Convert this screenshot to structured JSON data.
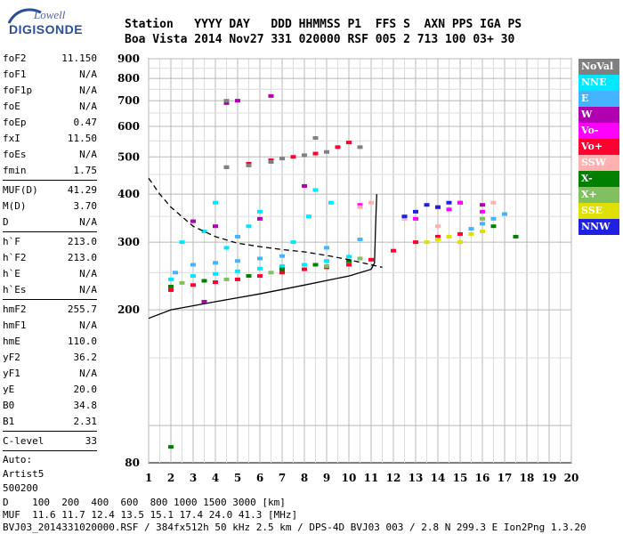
{
  "logo": {
    "top": "Lowell",
    "main": "DIGISONDE"
  },
  "header": {
    "line1": "Station   YYYY DAY   DDD HHMMSS P1  FFS S  AXN PPS IGA PS",
    "line2": "Boa Vista 2014 Nov27 331 020000 RSF 005 2 713 100 03+ 30"
  },
  "params": {
    "group1": [
      {
        "label": "foF2",
        "value": "11.150"
      },
      {
        "label": "foF1",
        "value": "N/A"
      },
      {
        "label": "foF1p",
        "value": "N/A"
      },
      {
        "label": "foE",
        "value": "N/A"
      },
      {
        "label": "foEp",
        "value": "0.47"
      },
      {
        "label": "fxI",
        "value": "11.50"
      },
      {
        "label": "foEs",
        "value": "N/A"
      },
      {
        "label": "fmin",
        "value": "1.75"
      }
    ],
    "group2": [
      {
        "label": "MUF(D)",
        "value": "41.29"
      },
      {
        "label": "M(D)",
        "value": "3.70"
      },
      {
        "label": "D",
        "value": "N/A"
      }
    ],
    "group3": [
      {
        "label": "h`F",
        "value": "213.0"
      },
      {
        "label": "h`F2",
        "value": "213.0"
      },
      {
        "label": "h`E",
        "value": "N/A"
      },
      {
        "label": "h`Es",
        "value": "N/A"
      }
    ],
    "group4": [
      {
        "label": "hmF2",
        "value": "255.7"
      },
      {
        "label": "hmF1",
        "value": "N/A"
      },
      {
        "label": "hmE",
        "value": "110.0"
      },
      {
        "label": "yF2",
        "value": "36.2"
      },
      {
        "label": "yF1",
        "value": "N/A"
      },
      {
        "label": "yE",
        "value": "20.0"
      },
      {
        "label": "B0",
        "value": "34.8"
      },
      {
        "label": "B1",
        "value": "2.31"
      }
    ],
    "group5": [
      {
        "label": "C-level",
        "value": "33"
      }
    ],
    "auto_label": "Auto:",
    "auto_value": "Artist5",
    "auto_code": "500200"
  },
  "legend": [
    {
      "label": "NoVal",
      "color": "#808080"
    },
    {
      "label": "NNE",
      "color": "#00e8ff"
    },
    {
      "label": "E",
      "color": "#44b4ff"
    },
    {
      "label": "W",
      "color": "#b000b0"
    },
    {
      "label": "Vo-",
      "color": "#ff00ff"
    },
    {
      "label": "Vo+",
      "color": "#ff0030"
    },
    {
      "label": "SSW",
      "color": "#ffb0b0"
    },
    {
      "label": "X-",
      "color": "#008000"
    },
    {
      "label": "X+",
      "color": "#80c060"
    },
    {
      "label": "SSE",
      "color": "#e0e000"
    },
    {
      "label": "NNW",
      "color": "#2020e0"
    }
  ],
  "footer": {
    "line1": "D    100  200  400  600  800 1000 1500 3000 [km]",
    "line2": "MUF  11.6 11.7 12.4 13.5 15.1 17.4 24.0 41.3 [MHz]",
    "line3": "BVJ03_2014331020000.RSF / 384fx512h 50 kHz 2.5 km / DPS-4D BVJ03 003 / 2.8 N 299.3 E Ion2Png 1.3.20"
  },
  "chart_data": {
    "type": "scatter",
    "title": "",
    "xlabel": "",
    "ylabel": "",
    "xlim": [
      1,
      20
    ],
    "ylim": [
      80,
      900
    ],
    "y_scale": "log",
    "x_ticks": [
      "1",
      "2",
      "3",
      "4",
      "5",
      "6",
      "7",
      "8",
      "9",
      "10",
      "11",
      "12",
      "13",
      "14",
      "15",
      "16",
      "17",
      "18",
      "19",
      "20"
    ],
    "y_ticks": [
      "80",
      "200",
      "300",
      "400",
      "500",
      "600",
      "700",
      "800",
      "900"
    ],
    "grid": true,
    "series": [
      {
        "name": "NNE",
        "points": [
          [
            2.0,
            240
          ],
          [
            3.0,
            245
          ],
          [
            4.0,
            248
          ],
          [
            5.0,
            252
          ],
          [
            6.0,
            256
          ],
          [
            7.0,
            260
          ],
          [
            8.0,
            262
          ],
          [
            9.0,
            268
          ],
          [
            10.0,
            275
          ],
          [
            2.5,
            300
          ],
          [
            4.5,
            290
          ],
          [
            7.5,
            300
          ],
          [
            8.2,
            350
          ],
          [
            8.5,
            410
          ],
          [
            9.2,
            380
          ],
          [
            3.5,
            320
          ],
          [
            5.5,
            330
          ],
          [
            6.0,
            360
          ],
          [
            4.0,
            380
          ]
        ]
      },
      {
        "name": "E",
        "points": [
          [
            2.2,
            250
          ],
          [
            3.0,
            262
          ],
          [
            4.0,
            265
          ],
          [
            5.0,
            268
          ],
          [
            6.0,
            272
          ],
          [
            7.0,
            276
          ],
          [
            9.0,
            290
          ],
          [
            10.5,
            305
          ],
          [
            15.5,
            325
          ],
          [
            16.0,
            335
          ],
          [
            16.5,
            345
          ],
          [
            17.0,
            355
          ],
          [
            5.0,
            310
          ]
        ]
      },
      {
        "name": "W",
        "points": [
          [
            4.5,
            690
          ],
          [
            5.0,
            700
          ],
          [
            6.5,
            720
          ],
          [
            3.0,
            340
          ],
          [
            4.0,
            330
          ],
          [
            6.0,
            345
          ],
          [
            8.0,
            420
          ],
          [
            14.0,
            370
          ],
          [
            15.0,
            380
          ],
          [
            16.0,
            375
          ],
          [
            3.5,
            210
          ]
        ]
      },
      {
        "name": "Vo-",
        "points": [
          [
            10.5,
            375
          ],
          [
            13.0,
            345
          ],
          [
            14.5,
            365
          ],
          [
            15.0,
            380
          ],
          [
            16.0,
            360
          ]
        ]
      },
      {
        "name": "Vo+",
        "points": [
          [
            2.0,
            225
          ],
          [
            3.0,
            232
          ],
          [
            4.0,
            236
          ],
          [
            5.0,
            240
          ],
          [
            6.0,
            245
          ],
          [
            7.0,
            250
          ],
          [
            8.0,
            255
          ],
          [
            9.0,
            258
          ],
          [
            10.0,
            262
          ],
          [
            11.0,
            270
          ],
          [
            12.0,
            285
          ],
          [
            13.0,
            300
          ],
          [
            14.0,
            310
          ],
          [
            15.0,
            315
          ],
          [
            4.5,
            470
          ],
          [
            5.5,
            480
          ],
          [
            6.5,
            490
          ],
          [
            7.5,
            500
          ],
          [
            8.5,
            510
          ],
          [
            9.5,
            530
          ],
          [
            10.0,
            545
          ]
        ]
      },
      {
        "name": "SSW",
        "points": [
          [
            10.5,
            370
          ],
          [
            11.0,
            380
          ],
          [
            12.5,
            345
          ],
          [
            14.0,
            330
          ],
          [
            16.5,
            380
          ]
        ]
      },
      {
        "name": "X-",
        "points": [
          [
            2.0,
            230
          ],
          [
            3.5,
            238
          ],
          [
            5.5,
            245
          ],
          [
            7.0,
            255
          ],
          [
            8.5,
            262
          ],
          [
            10.0,
            268
          ],
          [
            16.5,
            330
          ],
          [
            17.5,
            310
          ],
          [
            2.0,
            88
          ]
        ]
      },
      {
        "name": "X+",
        "points": [
          [
            2.5,
            235
          ],
          [
            4.5,
            240
          ],
          [
            6.5,
            250
          ],
          [
            9.0,
            260
          ],
          [
            10.5,
            272
          ],
          [
            16.0,
            345
          ]
        ]
      },
      {
        "name": "SSE",
        "points": [
          [
            13.5,
            300
          ],
          [
            14.0,
            305
          ],
          [
            14.5,
            310
          ],
          [
            15.0,
            300
          ],
          [
            15.5,
            315
          ],
          [
            16.0,
            320
          ]
        ]
      },
      {
        "name": "NNW",
        "points": [
          [
            13.5,
            375
          ],
          [
            14.0,
            370
          ],
          [
            14.5,
            380
          ],
          [
            12.5,
            350
          ],
          [
            13.0,
            360
          ]
        ]
      },
      {
        "name": "NoVal",
        "points": [
          [
            4.5,
            470
          ],
          [
            5.5,
            475
          ],
          [
            6.5,
            485
          ],
          [
            7.0,
            495
          ],
          [
            8.0,
            505
          ],
          [
            9.0,
            515
          ],
          [
            10.5,
            530
          ],
          [
            8.5,
            560
          ],
          [
            4.5,
            700
          ]
        ]
      }
    ],
    "profile_line": [
      [
        1.0,
        190
      ],
      [
        2.0,
        200
      ],
      [
        4.0,
        210
      ],
      [
        6.0,
        220
      ],
      [
        8.0,
        232
      ],
      [
        10.0,
        245
      ],
      [
        11.0,
        255
      ],
      [
        11.15,
        265
      ],
      [
        11.2,
        330
      ],
      [
        11.25,
        400
      ]
    ],
    "trace_dashed": [
      [
        1.0,
        440
      ],
      [
        1.5,
        400
      ],
      [
        2.0,
        370
      ],
      [
        3.0,
        330
      ],
      [
        4.0,
        310
      ],
      [
        5.0,
        298
      ],
      [
        6.0,
        292
      ],
      [
        7.0,
        287
      ],
      [
        8.0,
        283
      ],
      [
        9.0,
        277
      ],
      [
        10.0,
        270
      ],
      [
        11.0,
        262
      ],
      [
        11.5,
        258
      ]
    ]
  }
}
